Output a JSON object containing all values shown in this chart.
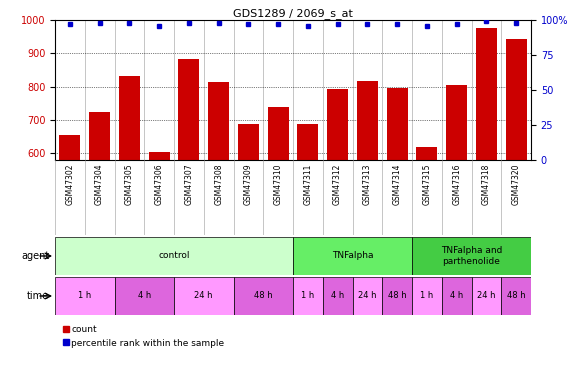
{
  "title": "GDS1289 / 2069_s_at",
  "samples": [
    "GSM47302",
    "GSM47304",
    "GSM47305",
    "GSM47306",
    "GSM47307",
    "GSM47308",
    "GSM47309",
    "GSM47310",
    "GSM47311",
    "GSM47312",
    "GSM47313",
    "GSM47314",
    "GSM47315",
    "GSM47316",
    "GSM47318",
    "GSM47320"
  ],
  "counts": [
    655,
    725,
    832,
    603,
    882,
    815,
    687,
    738,
    687,
    793,
    818,
    795,
    618,
    805,
    975,
    942
  ],
  "percentiles": [
    97,
    98,
    98,
    96,
    98,
    98,
    97,
    97,
    96,
    97,
    97,
    97,
    96,
    97,
    99,
    98
  ],
  "ylim_left": [
    580,
    1000
  ],
  "ylim_right": [
    0,
    100
  ],
  "yticks_left": [
    600,
    700,
    800,
    900,
    1000
  ],
  "yticks_right": [
    0,
    25,
    50,
    75,
    100
  ],
  "bar_color": "#cc0000",
  "dot_color": "#0000cc",
  "agent_groups": [
    {
      "label": "control",
      "start": 0,
      "end": 8,
      "color": "#ccffcc"
    },
    {
      "label": "TNFalpha",
      "start": 8,
      "end": 12,
      "color": "#66ee66"
    },
    {
      "label": "TNFalpha and\nparthenolide",
      "start": 12,
      "end": 16,
      "color": "#44cc44"
    }
  ],
  "time_groups": [
    {
      "label": "1 h",
      "start": 0,
      "end": 2,
      "color": "#ff99ff"
    },
    {
      "label": "4 h",
      "start": 2,
      "end": 4,
      "color": "#dd66dd"
    },
    {
      "label": "24 h",
      "start": 4,
      "end": 6,
      "color": "#ff99ff"
    },
    {
      "label": "48 h",
      "start": 6,
      "end": 8,
      "color": "#dd66dd"
    },
    {
      "label": "1 h",
      "start": 8,
      "end": 9,
      "color": "#ff99ff"
    },
    {
      "label": "4 h",
      "start": 9,
      "end": 10,
      "color": "#dd66dd"
    },
    {
      "label": "24 h",
      "start": 10,
      "end": 11,
      "color": "#ff99ff"
    },
    {
      "label": "48 h",
      "start": 11,
      "end": 12,
      "color": "#dd66dd"
    },
    {
      "label": "1 h",
      "start": 12,
      "end": 13,
      "color": "#ff99ff"
    },
    {
      "label": "4 h",
      "start": 13,
      "end": 14,
      "color": "#dd66dd"
    },
    {
      "label": "24 h",
      "start": 14,
      "end": 15,
      "color": "#ff99ff"
    },
    {
      "label": "48 h",
      "start": 15,
      "end": 16,
      "color": "#dd66dd"
    }
  ],
  "agent_label": "agent",
  "time_label": "time",
  "legend_count_label": "count",
  "legend_pct_label": "percentile rank within the sample",
  "fig_bg": "#ffffff",
  "plot_bg": "#ffffff",
  "tick_area_bg": "#cccccc"
}
